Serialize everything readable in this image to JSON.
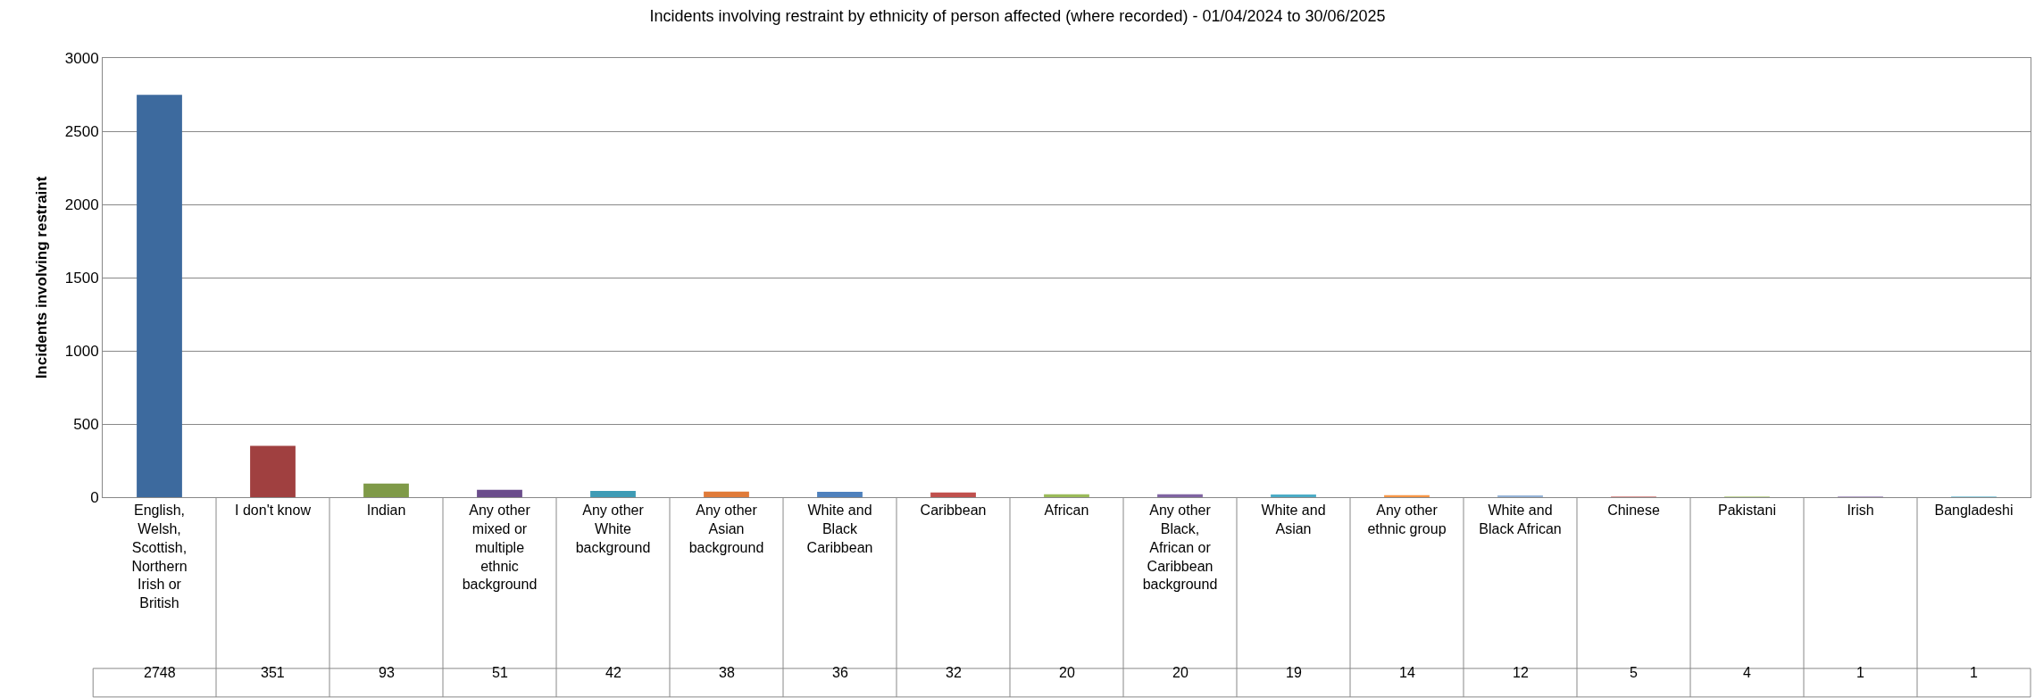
{
  "chart_data": {
    "type": "bar",
    "title": "Incidents involving restraint by ethnicity of person affected (where recorded) - 01/04/2024 to 30/06/2025",
    "ylabel": "Incidents involving restraint",
    "categories": [
      "English, Welsh, Scottish, Northern Irish or British",
      "I don't know",
      "Indian",
      "Any other mixed or multiple ethnic background",
      "Any other White background",
      "Any other Asian background",
      "White and Black Caribbean",
      "Caribbean",
      "African",
      "Any other Black, African or Caribbean background",
      "White and Asian",
      "Any other ethnic group",
      "White and Black African",
      "Chinese",
      "Pakistani",
      "Irish",
      "Bangladeshi"
    ],
    "values": [
      2748,
      351,
      93,
      51,
      42,
      38,
      36,
      32,
      20,
      20,
      19,
      14,
      12,
      5,
      4,
      1,
      1
    ],
    "colors": [
      "#3d6a9e",
      "#a04040",
      "#7f9a48",
      "#6a4c8b",
      "#3e9bb5",
      "#e07b39",
      "#4f81bd",
      "#c0504d",
      "#9bbb59",
      "#8064a2",
      "#4bacc6",
      "#f79646",
      "#95b3d7",
      "#d99694",
      "#c3d69b",
      "#b3a2c7",
      "#93cddd"
    ],
    "ylim": [
      0,
      3000
    ],
    "yticks": [
      0,
      500,
      1000,
      1500,
      2000,
      2500,
      3000
    ],
    "grid": "y",
    "data_labels": true,
    "legend": false
  }
}
